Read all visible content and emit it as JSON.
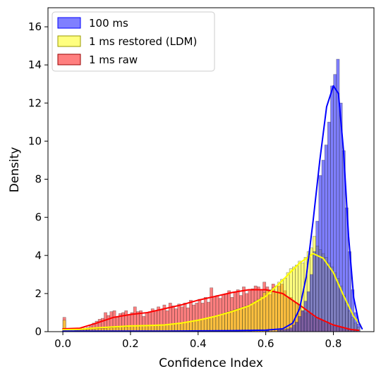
{
  "chart_data": {
    "type": "histogram",
    "xlabel": "Confidence Index",
    "ylabel": "Density",
    "xlim": [
      -0.044,
      0.92
    ],
    "ylim": [
      0,
      17
    ],
    "xticks": [
      0.0,
      0.2,
      0.4,
      0.6,
      0.8
    ],
    "xtick_labels": [
      "0.0",
      "0.2",
      "0.4",
      "0.6",
      "0.8"
    ],
    "yticks": [
      0,
      2,
      4,
      6,
      8,
      10,
      12,
      14,
      16
    ],
    "ytick_labels": [
      "0",
      "2",
      "4",
      "6",
      "8",
      "10",
      "12",
      "14",
      "16"
    ],
    "bin_width": 0.0087,
    "legend": {
      "placement": "top-left"
    },
    "series": [
      {
        "name": "1 ms raw",
        "color": "#ff0000",
        "kde_color": "#ff0000",
        "bins": [
          [
            0.0,
            0.75
          ],
          [
            0.0087,
            0.05
          ],
          [
            0.0174,
            0.05
          ],
          [
            0.0261,
            0.05
          ],
          [
            0.0348,
            0.07
          ],
          [
            0.0435,
            0.1
          ],
          [
            0.0522,
            0.15
          ],
          [
            0.0609,
            0.18
          ],
          [
            0.0696,
            0.22
          ],
          [
            0.0783,
            0.3
          ],
          [
            0.087,
            0.45
          ],
          [
            0.0957,
            0.55
          ],
          [
            0.1044,
            0.65
          ],
          [
            0.1131,
            0.7
          ],
          [
            0.1218,
            1.0
          ],
          [
            0.1305,
            0.85
          ],
          [
            0.1392,
            1.05
          ],
          [
            0.1479,
            1.1
          ],
          [
            0.1566,
            0.75
          ],
          [
            0.1653,
            0.95
          ],
          [
            0.174,
            1.0
          ],
          [
            0.1827,
            1.1
          ],
          [
            0.1914,
            0.9
          ],
          [
            0.2001,
            1.0
          ],
          [
            0.2088,
            1.3
          ],
          [
            0.2175,
            1.05
          ],
          [
            0.2262,
            1.1
          ],
          [
            0.2349,
            0.8
          ],
          [
            0.2436,
            1.0
          ],
          [
            0.2523,
            1.05
          ],
          [
            0.261,
            1.2
          ],
          [
            0.2697,
            1.1
          ],
          [
            0.2784,
            1.3
          ],
          [
            0.2871,
            1.15
          ],
          [
            0.2958,
            1.4
          ],
          [
            0.3045,
            1.1
          ],
          [
            0.3132,
            1.5
          ],
          [
            0.3219,
            1.35
          ],
          [
            0.3306,
            1.2
          ],
          [
            0.3393,
            1.45
          ],
          [
            0.348,
            1.3
          ],
          [
            0.3567,
            1.5
          ],
          [
            0.3654,
            1.25
          ],
          [
            0.3741,
            1.65
          ],
          [
            0.3828,
            1.4
          ],
          [
            0.3915,
            1.5
          ],
          [
            0.4002,
            1.7
          ],
          [
            0.4089,
            1.5
          ],
          [
            0.4176,
            1.8
          ],
          [
            0.4263,
            1.55
          ],
          [
            0.435,
            2.3
          ],
          [
            0.4437,
            1.85
          ],
          [
            0.4524,
            1.9
          ],
          [
            0.4611,
            1.75
          ],
          [
            0.4698,
            1.95
          ],
          [
            0.4785,
            2.0
          ],
          [
            0.4872,
            2.15
          ],
          [
            0.4959,
            1.8
          ],
          [
            0.5046,
            2.1
          ],
          [
            0.5133,
            2.2
          ],
          [
            0.522,
            1.9
          ],
          [
            0.5307,
            2.35
          ],
          [
            0.5394,
            2.0
          ],
          [
            0.5481,
            2.2
          ],
          [
            0.5568,
            2.25
          ],
          [
            0.5655,
            2.4
          ],
          [
            0.5742,
            2.35
          ],
          [
            0.5829,
            2.2
          ],
          [
            0.5916,
            2.6
          ],
          [
            0.6003,
            2.35
          ],
          [
            0.609,
            1.95
          ],
          [
            0.6177,
            2.5
          ],
          [
            0.6264,
            2.1
          ],
          [
            0.6351,
            2.4
          ],
          [
            0.6438,
            2.5
          ],
          [
            0.6525,
            2.15
          ],
          [
            0.6612,
            1.75
          ],
          [
            0.6699,
            1.8
          ],
          [
            0.6786,
            1.6
          ],
          [
            0.6873,
            1.5
          ],
          [
            0.696,
            1.4
          ],
          [
            0.7047,
            1.1
          ],
          [
            0.7134,
            1.0
          ],
          [
            0.7221,
            1.0
          ],
          [
            0.7308,
            0.9
          ],
          [
            0.7395,
            0.75
          ],
          [
            0.7482,
            0.75
          ],
          [
            0.7569,
            0.6
          ],
          [
            0.7656,
            0.55
          ],
          [
            0.7743,
            0.45
          ],
          [
            0.783,
            0.4
          ],
          [
            0.7917,
            0.3
          ],
          [
            0.8004,
            0.35
          ],
          [
            0.8091,
            0.25
          ],
          [
            0.8178,
            0.2
          ],
          [
            0.8265,
            0.15
          ],
          [
            0.8352,
            0.12
          ],
          [
            0.8439,
            0.1
          ],
          [
            0.8526,
            0.08
          ],
          [
            0.8613,
            0.05
          ]
        ],
        "kde": [
          [
            0.0,
            0.15
          ],
          [
            0.05,
            0.18
          ],
          [
            0.1,
            0.45
          ],
          [
            0.15,
            0.75
          ],
          [
            0.2,
            0.9
          ],
          [
            0.25,
            1.0
          ],
          [
            0.3,
            1.2
          ],
          [
            0.35,
            1.4
          ],
          [
            0.4,
            1.65
          ],
          [
            0.45,
            1.85
          ],
          [
            0.5,
            2.05
          ],
          [
            0.55,
            2.2
          ],
          [
            0.6,
            2.2
          ],
          [
            0.65,
            2.0
          ],
          [
            0.7,
            1.4
          ],
          [
            0.75,
            0.75
          ],
          [
            0.8,
            0.35
          ],
          [
            0.85,
            0.12
          ],
          [
            0.875,
            0.07
          ]
        ]
      },
      {
        "name": "1 ms restored (LDM)",
        "color": "#ffff00",
        "kde_color": "#ffff00",
        "bins": [
          [
            0.0,
            0.6
          ],
          [
            0.0087,
            0.05
          ],
          [
            0.0174,
            0.05
          ],
          [
            0.0261,
            0.05
          ],
          [
            0.0348,
            0.06
          ],
          [
            0.0435,
            0.07
          ],
          [
            0.0522,
            0.08
          ],
          [
            0.0609,
            0.1
          ],
          [
            0.0696,
            0.1
          ],
          [
            0.0783,
            0.12
          ],
          [
            0.087,
            0.12
          ],
          [
            0.0957,
            0.15
          ],
          [
            0.1044,
            0.15
          ],
          [
            0.1131,
            0.15
          ],
          [
            0.1218,
            0.18
          ],
          [
            0.1305,
            0.2
          ],
          [
            0.1392,
            0.2
          ],
          [
            0.1479,
            0.22
          ],
          [
            0.1566,
            0.22
          ],
          [
            0.1653,
            0.25
          ],
          [
            0.174,
            0.25
          ],
          [
            0.1827,
            0.25
          ],
          [
            0.1914,
            0.28
          ],
          [
            0.2001,
            0.28
          ],
          [
            0.2088,
            0.3
          ],
          [
            0.2175,
            0.3
          ],
          [
            0.2262,
            0.3
          ],
          [
            0.2349,
            0.3
          ],
          [
            0.2436,
            0.32
          ],
          [
            0.2523,
            0.32
          ],
          [
            0.261,
            0.32
          ],
          [
            0.2697,
            0.32
          ],
          [
            0.2784,
            0.33
          ],
          [
            0.2871,
            0.35
          ],
          [
            0.2958,
            0.35
          ],
          [
            0.3045,
            0.35
          ],
          [
            0.3132,
            0.37
          ],
          [
            0.3219,
            0.38
          ],
          [
            0.3306,
            0.4
          ],
          [
            0.3393,
            0.42
          ],
          [
            0.348,
            0.45
          ],
          [
            0.3567,
            0.48
          ],
          [
            0.3654,
            0.5
          ],
          [
            0.3741,
            0.52
          ],
          [
            0.3828,
            0.55
          ],
          [
            0.3915,
            0.58
          ],
          [
            0.4002,
            0.6
          ],
          [
            0.4089,
            0.65
          ],
          [
            0.4176,
            0.7
          ],
          [
            0.4263,
            0.72
          ],
          [
            0.435,
            0.75
          ],
          [
            0.4437,
            0.8
          ],
          [
            0.4524,
            0.85
          ],
          [
            0.4611,
            0.9
          ],
          [
            0.4698,
            0.95
          ],
          [
            0.4785,
            1.0
          ],
          [
            0.4872,
            1.05
          ],
          [
            0.4959,
            1.1
          ],
          [
            0.5046,
            1.15
          ],
          [
            0.5133,
            1.2
          ],
          [
            0.522,
            1.25
          ],
          [
            0.5307,
            1.3
          ],
          [
            0.5394,
            1.35
          ],
          [
            0.5481,
            1.4
          ],
          [
            0.5568,
            1.5
          ],
          [
            0.5655,
            1.6
          ],
          [
            0.5742,
            1.7
          ],
          [
            0.5829,
            1.85
          ],
          [
            0.5916,
            2.05
          ],
          [
            0.6003,
            2.15
          ],
          [
            0.609,
            2.2
          ],
          [
            0.6177,
            2.3
          ],
          [
            0.6264,
            2.4
          ],
          [
            0.6351,
            2.6
          ],
          [
            0.6438,
            2.75
          ],
          [
            0.6525,
            2.8
          ],
          [
            0.6612,
            3.1
          ],
          [
            0.6699,
            3.3
          ],
          [
            0.6786,
            3.4
          ],
          [
            0.6873,
            3.5
          ],
          [
            0.696,
            3.7
          ],
          [
            0.7047,
            3.6
          ],
          [
            0.7134,
            3.9
          ],
          [
            0.7221,
            4.2
          ],
          [
            0.7308,
            4.4
          ],
          [
            0.7395,
            5.0
          ],
          [
            0.7482,
            4.5
          ],
          [
            0.7569,
            4.3
          ],
          [
            0.7656,
            4.1
          ],
          [
            0.7743,
            3.9
          ],
          [
            0.783,
            3.6
          ],
          [
            0.7917,
            3.4
          ],
          [
            0.8004,
            3.1
          ],
          [
            0.8091,
            2.8
          ],
          [
            0.8178,
            2.4
          ],
          [
            0.8265,
            1.9
          ],
          [
            0.8352,
            1.5
          ],
          [
            0.8439,
            1.1
          ],
          [
            0.8526,
            0.75
          ],
          [
            0.8613,
            0.45
          ],
          [
            0.87,
            0.25
          ]
        ],
        "kde": [
          [
            0.0,
            0.1
          ],
          [
            0.05,
            0.12
          ],
          [
            0.1,
            0.2
          ],
          [
            0.15,
            0.25
          ],
          [
            0.2,
            0.3
          ],
          [
            0.25,
            0.32
          ],
          [
            0.3,
            0.35
          ],
          [
            0.35,
            0.45
          ],
          [
            0.4,
            0.6
          ],
          [
            0.45,
            0.8
          ],
          [
            0.5,
            1.05
          ],
          [
            0.55,
            1.35
          ],
          [
            0.6,
            1.85
          ],
          [
            0.65,
            2.7
          ],
          [
            0.7,
            3.6
          ],
          [
            0.74,
            4.1
          ],
          [
            0.77,
            3.85
          ],
          [
            0.8,
            3.1
          ],
          [
            0.83,
            1.9
          ],
          [
            0.86,
            0.8
          ],
          [
            0.88,
            0.35
          ]
        ]
      },
      {
        "name": "100 ms",
        "color": "#0000ff",
        "kde_color": "#0000ff",
        "bins": [
          [
            0.0,
            0.05
          ],
          [
            0.5,
            0.05
          ],
          [
            0.55,
            0.05
          ],
          [
            0.6,
            0.05
          ],
          [
            0.6351,
            0.08
          ],
          [
            0.6438,
            0.1
          ],
          [
            0.6525,
            0.12
          ],
          [
            0.6612,
            0.15
          ],
          [
            0.6699,
            0.2
          ],
          [
            0.6786,
            0.35
          ],
          [
            0.6873,
            0.5
          ],
          [
            0.696,
            0.8
          ],
          [
            0.7047,
            1.1
          ],
          [
            0.7134,
            1.6
          ],
          [
            0.7221,
            2.1
          ],
          [
            0.7308,
            3.0
          ],
          [
            0.7395,
            4.2
          ],
          [
            0.7482,
            5.8
          ],
          [
            0.7569,
            8.2
          ],
          [
            0.7656,
            9.0
          ],
          [
            0.7743,
            9.8
          ],
          [
            0.783,
            11.0
          ],
          [
            0.7917,
            12.9
          ],
          [
            0.8004,
            13.5
          ],
          [
            0.8091,
            14.3
          ],
          [
            0.8178,
            12.0
          ],
          [
            0.8265,
            9.5
          ],
          [
            0.8352,
            6.5
          ],
          [
            0.8439,
            4.2
          ],
          [
            0.8526,
            2.2
          ],
          [
            0.8613,
            1.0
          ],
          [
            0.87,
            0.4
          ]
        ],
        "kde": [
          [
            0.0,
            0.03
          ],
          [
            0.3,
            0.03
          ],
          [
            0.5,
            0.05
          ],
          [
            0.6,
            0.08
          ],
          [
            0.65,
            0.15
          ],
          [
            0.68,
            0.45
          ],
          [
            0.7,
            1.2
          ],
          [
            0.72,
            2.9
          ],
          [
            0.74,
            5.8
          ],
          [
            0.76,
            9.0
          ],
          [
            0.78,
            11.8
          ],
          [
            0.8,
            12.9
          ],
          [
            0.815,
            12.5
          ],
          [
            0.83,
            9.5
          ],
          [
            0.845,
            5.0
          ],
          [
            0.86,
            1.8
          ],
          [
            0.875,
            0.5
          ],
          [
            0.885,
            0.15
          ]
        ]
      }
    ]
  }
}
